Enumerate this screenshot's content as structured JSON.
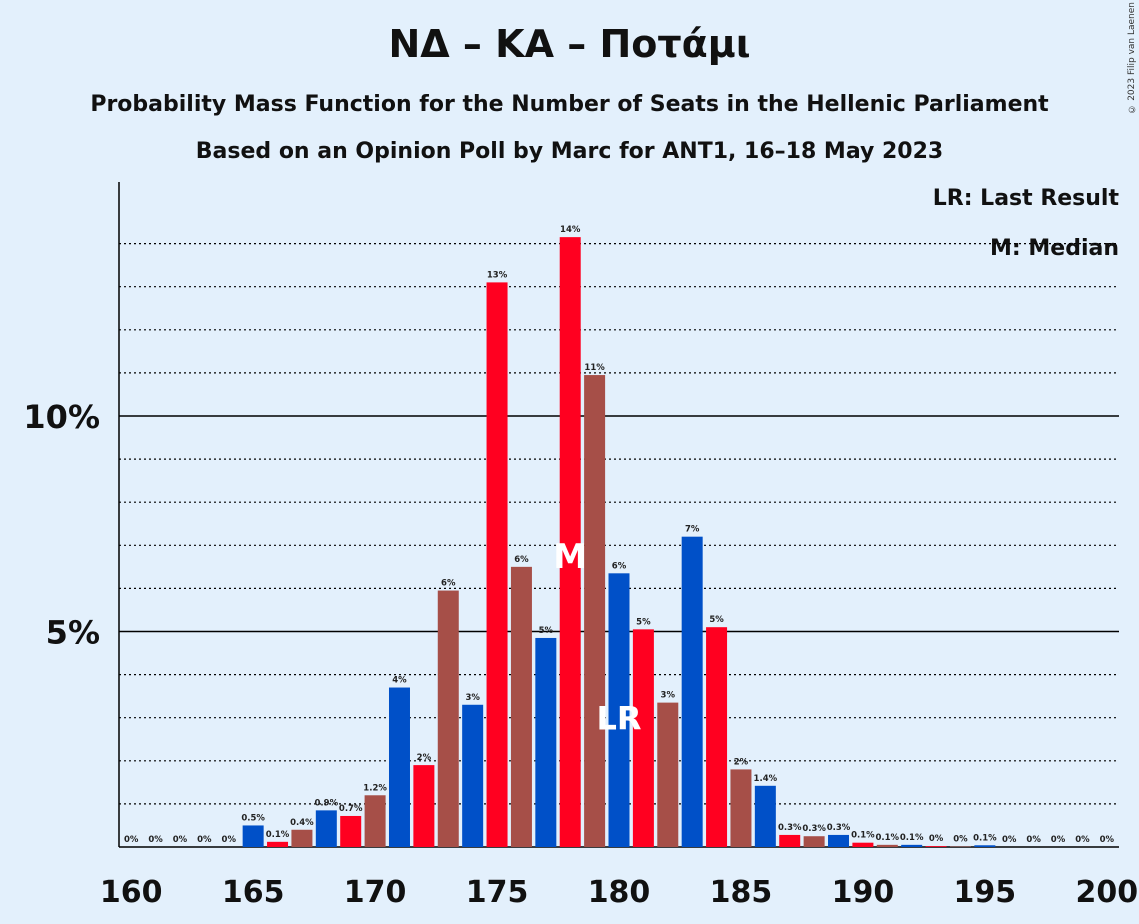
{
  "title": "ΝΔ – ΚΑ – Ποτάμι",
  "subtitle1": "Probability Mass Function for the Number of Seats in the Hellenic Parliament",
  "subtitle2": "Based on an Opinion Poll by Marc for ANT1, 16–18 May 2023",
  "legend": {
    "lr": "LR: Last Result",
    "m": "M: Median"
  },
  "copyright": "© 2023 Filip van Laenen",
  "colors": {
    "blue": "#0050c8",
    "red": "#ff0020",
    "brown": "#a64f48",
    "background": "#e3f0fc"
  },
  "chart_data": {
    "type": "bar",
    "xlabel": "",
    "ylabel": "",
    "xlim": [
      160,
      200
    ],
    "ylim": [
      0,
      15
    ],
    "x_ticks": [
      "160",
      "165",
      "170",
      "175",
      "180",
      "185",
      "190",
      "195",
      "200"
    ],
    "y_ticks": [
      {
        "value": 5,
        "label": "5%"
      },
      {
        "value": 10,
        "label": "10%"
      }
    ],
    "median_seat": 178,
    "median_label": "M",
    "last_result_seat": 180,
    "last_result_label": "LR",
    "bars": [
      {
        "seat": 160,
        "value": 0,
        "label": "0%",
        "color": "blue"
      },
      {
        "seat": 161,
        "value": 0,
        "label": "0%",
        "color": "red"
      },
      {
        "seat": 162,
        "value": 0,
        "label": "0%",
        "color": "brown"
      },
      {
        "seat": 163,
        "value": 0,
        "label": "0%",
        "color": "blue"
      },
      {
        "seat": 164,
        "value": 0,
        "label": "0%",
        "color": "red"
      },
      {
        "seat": 165,
        "value": 0.5,
        "label": "0.5%",
        "color": "blue"
      },
      {
        "seat": 166,
        "value": 0.12,
        "label": "0.1%",
        "color": "red"
      },
      {
        "seat": 167,
        "value": 0.4,
        "label": "0.4%",
        "color": "brown"
      },
      {
        "seat": 168,
        "value": 0.85,
        "label": "0.9%",
        "color": "blue"
      },
      {
        "seat": 169,
        "value": 0.72,
        "label": "0.7%",
        "color": "red"
      },
      {
        "seat": 170,
        "value": 1.2,
        "label": "1.2%",
        "color": "brown"
      },
      {
        "seat": 171,
        "value": 3.7,
        "label": "4%",
        "color": "blue"
      },
      {
        "seat": 172,
        "value": 1.9,
        "label": "2%",
        "color": "red"
      },
      {
        "seat": 173,
        "value": 5.95,
        "label": "6%",
        "color": "brown"
      },
      {
        "seat": 174,
        "value": 3.3,
        "label": "3%",
        "color": "blue"
      },
      {
        "seat": 175,
        "value": 13.1,
        "label": "13%",
        "color": "red"
      },
      {
        "seat": 176,
        "value": 6.5,
        "label": "6%",
        "color": "brown"
      },
      {
        "seat": 177,
        "value": 4.85,
        "label": "5%",
        "color": "blue"
      },
      {
        "seat": 178,
        "value": 14.15,
        "label": "14%",
        "color": "red"
      },
      {
        "seat": 179,
        "value": 10.95,
        "label": "11%",
        "color": "brown"
      },
      {
        "seat": 180,
        "value": 6.35,
        "label": "6%",
        "color": "blue"
      },
      {
        "seat": 181,
        "value": 5.05,
        "label": "5%",
        "color": "red"
      },
      {
        "seat": 182,
        "value": 3.35,
        "label": "3%",
        "color": "brown"
      },
      {
        "seat": 183,
        "value": 7.2,
        "label": "7%",
        "color": "blue"
      },
      {
        "seat": 184,
        "value": 5.1,
        "label": "5%",
        "color": "red"
      },
      {
        "seat": 185,
        "value": 1.8,
        "label": "2%",
        "color": "brown"
      },
      {
        "seat": 186,
        "value": 1.42,
        "label": "1.4%",
        "color": "blue"
      },
      {
        "seat": 187,
        "value": 0.28,
        "label": "0.3%",
        "color": "red"
      },
      {
        "seat": 188,
        "value": 0.25,
        "label": "0.3%",
        "color": "brown"
      },
      {
        "seat": 189,
        "value": 0.28,
        "label": "0.3%",
        "color": "blue"
      },
      {
        "seat": 190,
        "value": 0.1,
        "label": "0.1%",
        "color": "red"
      },
      {
        "seat": 191,
        "value": 0.05,
        "label": "0.1%",
        "color": "brown"
      },
      {
        "seat": 192,
        "value": 0.05,
        "label": "0.1%",
        "color": "blue"
      },
      {
        "seat": 193,
        "value": 0.02,
        "label": "0%",
        "color": "red"
      },
      {
        "seat": 194,
        "value": 0.01,
        "label": "0%",
        "color": "brown"
      },
      {
        "seat": 195,
        "value": 0.04,
        "label": "0.1%",
        "color": "blue"
      },
      {
        "seat": 196,
        "value": 0,
        "label": "0%",
        "color": "red"
      },
      {
        "seat": 197,
        "value": 0,
        "label": "0%",
        "color": "brown"
      },
      {
        "seat": 198,
        "value": 0,
        "label": "0%",
        "color": "blue"
      },
      {
        "seat": 199,
        "value": 0,
        "label": "0%",
        "color": "red"
      },
      {
        "seat": 200,
        "value": 0,
        "label": "0%",
        "color": "brown"
      }
    ]
  }
}
